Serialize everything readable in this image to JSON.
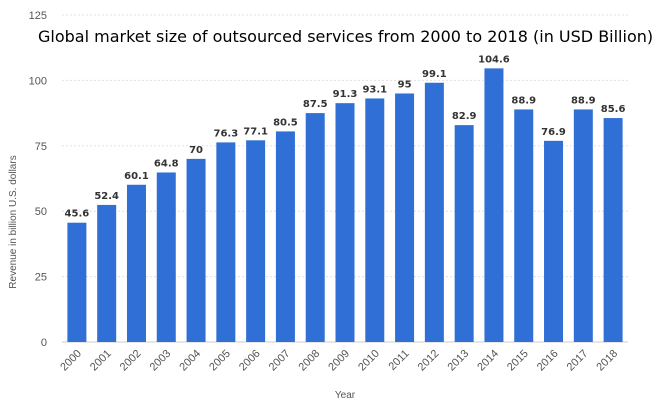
{
  "chart_data": {
    "type": "bar",
    "title": "Global market size of outsourced services from 2000 to 2018 (in USD Billion)",
    "xlabel": "Year",
    "ylabel": "Revenue in billion U.S. dollars",
    "categories": [
      "2000",
      "2001",
      "2002",
      "2003",
      "2004",
      "2005",
      "2006",
      "2007",
      "2008",
      "2009",
      "2010",
      "2011",
      "2012",
      "2013",
      "2014",
      "2015",
      "2016",
      "2017",
      "2018"
    ],
    "values": [
      45.6,
      52.4,
      60.1,
      64.8,
      70,
      76.3,
      77.1,
      80.5,
      87.5,
      91.3,
      93.1,
      95,
      99.1,
      82.9,
      104.6,
      88.9,
      76.9,
      88.9,
      85.6
    ],
    "data_labels": [
      "45.6",
      "52.4",
      "60.1",
      "64.8",
      "70",
      "76.3",
      "77.1",
      "80.5",
      "87.5",
      "91.3",
      "93.1",
      "95",
      "99.1",
      "82.9",
      "104.6",
      "88.9",
      "76.9",
      "88.9",
      "85.6"
    ],
    "ylim": [
      0,
      125
    ],
    "yticks": [
      "0",
      "25",
      "50",
      "75",
      "100",
      "125"
    ],
    "grid": true,
    "bar_color": "#2f6fd6"
  }
}
